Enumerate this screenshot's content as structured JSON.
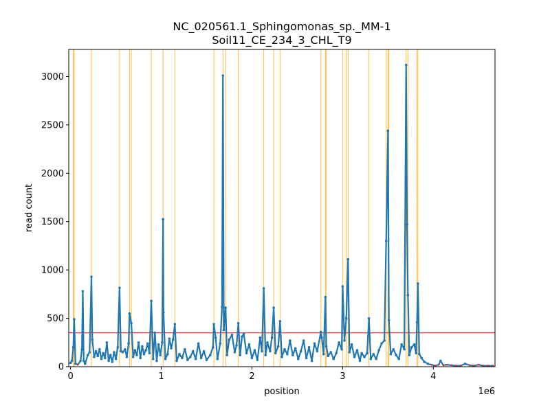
{
  "chart_data": {
    "type": "line",
    "title": "NC_020561.1_Sphingomonas_sp._MM-1",
    "subtitle": "Soil11_CE_234_3_CHL_T9",
    "xlabel": "position",
    "ylabel": "read count",
    "x_offset_label": "1e6",
    "xlim": [
      -20000,
      4680000
    ],
    "ylim": [
      0,
      3280
    ],
    "x_ticks": [
      0,
      1000000,
      2000000,
      3000000,
      4000000
    ],
    "x_tick_labels": [
      "0",
      "1",
      "2",
      "3",
      "4"
    ],
    "y_ticks": [
      0,
      500,
      1000,
      1500,
      2000,
      2500,
      3000
    ],
    "y_tick_labels": [
      "0",
      "500",
      "1000",
      "1500",
      "2000",
      "2500",
      "3000"
    ],
    "threshold": 350,
    "colors": {
      "series": "#1f77b4",
      "threshold": "#d62728",
      "peak_lines": "#ffa500",
      "low_points": "#d62728"
    },
    "peak_positions": [
      30000,
      40000,
      230000,
      540000,
      650000,
      670000,
      890000,
      1020000,
      1150000,
      1580000,
      1680000,
      1710000,
      1850000,
      2130000,
      2240000,
      2310000,
      2760000,
      2810000,
      2820000,
      3000000,
      3040000,
      3060000,
      3290000,
      3480000,
      3500000,
      3510000,
      3700000,
      3720000,
      3820000,
      3830000
    ],
    "series": [
      {
        "name": "",
        "points": [
          [
            0,
            40
          ],
          [
            15000,
            60
          ],
          [
            30000,
            200
          ],
          [
            40000,
            490
          ],
          [
            55000,
            30
          ],
          [
            80000,
            20
          ],
          [
            110000,
            60
          ],
          [
            125000,
            180
          ],
          [
            135000,
            780
          ],
          [
            145000,
            60
          ],
          [
            160000,
            30
          ],
          [
            190000,
            120
          ],
          [
            210000,
            150
          ],
          [
            230000,
            930
          ],
          [
            240000,
            280
          ],
          [
            260000,
            100
          ],
          [
            280000,
            160
          ],
          [
            300000,
            110
          ],
          [
            320000,
            180
          ],
          [
            340000,
            80
          ],
          [
            360000,
            140
          ],
          [
            380000,
            90
          ],
          [
            400000,
            250
          ],
          [
            420000,
            60
          ],
          [
            440000,
            120
          ],
          [
            460000,
            50
          ],
          [
            480000,
            150
          ],
          [
            500000,
            80
          ],
          [
            520000,
            200
          ],
          [
            540000,
            815
          ],
          [
            555000,
            160
          ],
          [
            575000,
            150
          ],
          [
            600000,
            180
          ],
          [
            620000,
            100
          ],
          [
            640000,
            240
          ],
          [
            650000,
            550
          ],
          [
            670000,
            450
          ],
          [
            690000,
            100
          ],
          [
            710000,
            170
          ],
          [
            730000,
            120
          ],
          [
            750000,
            250
          ],
          [
            770000,
            90
          ],
          [
            790000,
            210
          ],
          [
            810000,
            130
          ],
          [
            830000,
            170
          ],
          [
            850000,
            240
          ],
          [
            870000,
            140
          ],
          [
            890000,
            680
          ],
          [
            910000,
            80
          ],
          [
            930000,
            350
          ],
          [
            950000,
            60
          ],
          [
            970000,
            230
          ],
          [
            990000,
            120
          ],
          [
            1010000,
            250
          ],
          [
            1020000,
            1525
          ],
          [
            1025000,
            560
          ],
          [
            1045000,
            80
          ],
          [
            1070000,
            130
          ],
          [
            1090000,
            290
          ],
          [
            1110000,
            190
          ],
          [
            1130000,
            280
          ],
          [
            1150000,
            440
          ],
          [
            1170000,
            60
          ],
          [
            1200000,
            130
          ],
          [
            1230000,
            90
          ],
          [
            1260000,
            180
          ],
          [
            1290000,
            70
          ],
          [
            1320000,
            100
          ],
          [
            1350000,
            160
          ],
          [
            1380000,
            80
          ],
          [
            1410000,
            240
          ],
          [
            1440000,
            90
          ],
          [
            1470000,
            160
          ],
          [
            1500000,
            70
          ],
          [
            1540000,
            120
          ],
          [
            1570000,
            200
          ],
          [
            1580000,
            440
          ],
          [
            1600000,
            300
          ],
          [
            1620000,
            80
          ],
          [
            1650000,
            240
          ],
          [
            1670000,
            620
          ],
          [
            1680000,
            3010
          ],
          [
            1690000,
            380
          ],
          [
            1710000,
            610
          ],
          [
            1725000,
            120
          ],
          [
            1750000,
            280
          ],
          [
            1780000,
            330
          ],
          [
            1810000,
            150
          ],
          [
            1830000,
            220
          ],
          [
            1850000,
            450
          ],
          [
            1870000,
            120
          ],
          [
            1890000,
            310
          ],
          [
            1910000,
            340
          ],
          [
            1940000,
            140
          ],
          [
            1970000,
            230
          ],
          [
            2000000,
            90
          ],
          [
            2030000,
            170
          ],
          [
            2060000,
            70
          ],
          [
            2090000,
            300
          ],
          [
            2110000,
            160
          ],
          [
            2130000,
            810
          ],
          [
            2150000,
            120
          ],
          [
            2170000,
            250
          ],
          [
            2200000,
            160
          ],
          [
            2220000,
            300
          ],
          [
            2240000,
            610
          ],
          [
            2260000,
            140
          ],
          [
            2290000,
            210
          ],
          [
            2310000,
            470
          ],
          [
            2330000,
            100
          ],
          [
            2360000,
            180
          ],
          [
            2390000,
            130
          ],
          [
            2420000,
            270
          ],
          [
            2450000,
            120
          ],
          [
            2480000,
            190
          ],
          [
            2510000,
            80
          ],
          [
            2540000,
            160
          ],
          [
            2570000,
            270
          ],
          [
            2600000,
            90
          ],
          [
            2630000,
            200
          ],
          [
            2660000,
            60
          ],
          [
            2690000,
            240
          ],
          [
            2720000,
            160
          ],
          [
            2760000,
            360
          ],
          [
            2770000,
            300
          ],
          [
            2790000,
            130
          ],
          [
            2810000,
            720
          ],
          [
            2820000,
            210
          ],
          [
            2840000,
            110
          ],
          [
            2870000,
            150
          ],
          [
            2900000,
            80
          ],
          [
            2930000,
            140
          ],
          [
            2960000,
            250
          ],
          [
            2990000,
            180
          ],
          [
            3000000,
            830
          ],
          [
            3020000,
            270
          ],
          [
            3040000,
            500
          ],
          [
            3060000,
            1110
          ],
          [
            3075000,
            150
          ],
          [
            3100000,
            230
          ],
          [
            3130000,
            100
          ],
          [
            3160000,
            170
          ],
          [
            3190000,
            60
          ],
          [
            3210000,
            140
          ],
          [
            3240000,
            100
          ],
          [
            3270000,
            140
          ],
          [
            3290000,
            500
          ],
          [
            3310000,
            80
          ],
          [
            3340000,
            130
          ],
          [
            3370000,
            80
          ],
          [
            3400000,
            170
          ],
          [
            3430000,
            240
          ],
          [
            3460000,
            270
          ],
          [
            3480000,
            1300
          ],
          [
            3500000,
            2440
          ],
          [
            3510000,
            480
          ],
          [
            3530000,
            130
          ],
          [
            3560000,
            180
          ],
          [
            3590000,
            120
          ],
          [
            3620000,
            80
          ],
          [
            3650000,
            230
          ],
          [
            3680000,
            180
          ],
          [
            3700000,
            3120
          ],
          [
            3710000,
            1470
          ],
          [
            3720000,
            740
          ],
          [
            3735000,
            120
          ],
          [
            3760000,
            200
          ],
          [
            3790000,
            230
          ],
          [
            3810000,
            140
          ],
          [
            3820000,
            460
          ],
          [
            3830000,
            860
          ],
          [
            3845000,
            130
          ],
          [
            3870000,
            90
          ],
          [
            3900000,
            50
          ],
          [
            3940000,
            30
          ],
          [
            3980000,
            20
          ],
          [
            4020000,
            10
          ],
          [
            4060000,
            20
          ],
          [
            4080000,
            60
          ],
          [
            4110000,
            15
          ],
          [
            4150000,
            20
          ],
          [
            4200000,
            15
          ],
          [
            4250000,
            10
          ],
          [
            4300000,
            10
          ],
          [
            4350000,
            30
          ],
          [
            4400000,
            15
          ],
          [
            4450000,
            10
          ],
          [
            4500000,
            20
          ],
          [
            4550000,
            10
          ],
          [
            4600000,
            10
          ],
          [
            4660000,
            10
          ]
        ]
      }
    ]
  }
}
